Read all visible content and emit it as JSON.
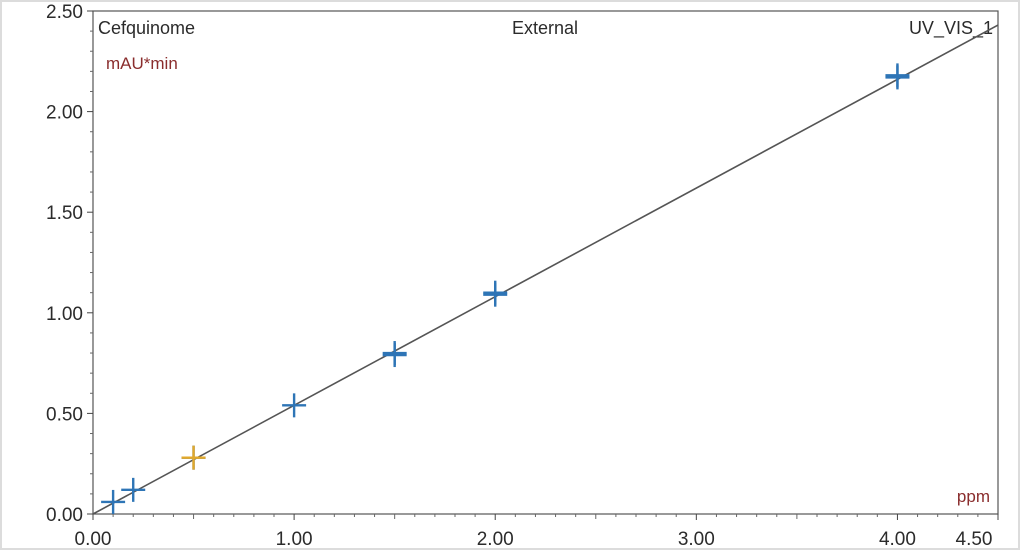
{
  "chart_data": {
    "type": "scatter",
    "title_left": "Cefquinome",
    "title_center": "External",
    "title_right": "UV_VIS_1",
    "ylabel": "mAU*min",
    "xlabel": "ppm",
    "xlim": [
      0,
      4.5
    ],
    "ylim": [
      0,
      2.5
    ],
    "x_ticks": [
      "0.00",
      "1.00",
      "2.00",
      "3.00",
      "4.00",
      "4.50"
    ],
    "x_tick_values": [
      0,
      1,
      2,
      3,
      4,
      4.5
    ],
    "y_ticks": [
      "0.00",
      "0.50",
      "1.00",
      "1.50",
      "2.00",
      "2.50"
    ],
    "y_tick_values": [
      0,
      0.5,
      1,
      1.5,
      2,
      2.5
    ],
    "grid": false,
    "series": [
      {
        "color": "#2e75b6",
        "marker": "plus",
        "x": [
          0.1,
          0.2,
          0.5,
          1.0,
          1.5,
          1.5,
          2.0,
          2.0,
          4.0,
          4.0
        ],
        "y": [
          0.06,
          0.12,
          0.28,
          0.54,
          0.79,
          0.8,
          1.1,
          1.09,
          2.17,
          2.18
        ]
      },
      {
        "color": "#e3a92a",
        "marker": "plus",
        "x": [
          0.5
        ],
        "y": [
          0.28
        ]
      }
    ],
    "fit_line": {
      "color": "#555555",
      "x": [
        0,
        4.5
      ],
      "y": [
        0.0,
        2.43
      ]
    }
  }
}
